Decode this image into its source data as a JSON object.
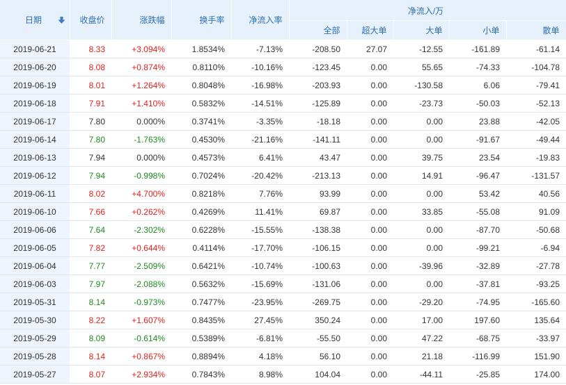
{
  "headers": {
    "date": "日期",
    "close": "收盘价",
    "change": "涨跌幅",
    "turnover": "换手率",
    "net_ratio": "净流入率",
    "net_group": "净流入/万",
    "all": "全部",
    "xl": "超大单",
    "l": "大单",
    "s": "小单",
    "r": "散单"
  },
  "colors": {
    "up": "#e0211b",
    "down": "#1e8a1e",
    "flat": "#333333",
    "header_text": "#2b6fb5",
    "header_bg": "#e7f1fc"
  },
  "sort_icon": "sort-desc-arrow-icon",
  "rows": [
    {
      "date": "2019-06-21",
      "close": "8.33",
      "change": "+3.094%",
      "turnover": "1.8534%",
      "net_ratio": "-7.13%",
      "all": "-208.50",
      "xl": "27.07",
      "l": "-12.55",
      "s": "-161.89",
      "r": "-61.14",
      "trend": "up"
    },
    {
      "date": "2019-06-20",
      "close": "8.08",
      "change": "+0.874%",
      "turnover": "0.8110%",
      "net_ratio": "-10.16%",
      "all": "-123.45",
      "xl": "0.00",
      "l": "55.65",
      "s": "-74.33",
      "r": "-104.78",
      "trend": "up"
    },
    {
      "date": "2019-06-19",
      "close": "8.01",
      "change": "+1.264%",
      "turnover": "0.8048%",
      "net_ratio": "-16.98%",
      "all": "-203.93",
      "xl": "0.00",
      "l": "-130.58",
      "s": "6.06",
      "r": "-79.41",
      "trend": "up"
    },
    {
      "date": "2019-06-18",
      "close": "7.91",
      "change": "+1.410%",
      "turnover": "0.5832%",
      "net_ratio": "-14.51%",
      "all": "-125.89",
      "xl": "0.00",
      "l": "-23.73",
      "s": "-50.03",
      "r": "-52.13",
      "trend": "up"
    },
    {
      "date": "2019-06-17",
      "close": "7.80",
      "change": "0.000%",
      "turnover": "0.3741%",
      "net_ratio": "-3.35%",
      "all": "-18.18",
      "xl": "0.00",
      "l": "0.00",
      "s": "23.88",
      "r": "-42.05",
      "trend": "flat"
    },
    {
      "date": "2019-06-14",
      "close": "7.80",
      "change": "-1.763%",
      "turnover": "0.4530%",
      "net_ratio": "-21.16%",
      "all": "-141.11",
      "xl": "0.00",
      "l": "0.00",
      "s": "-91.67",
      "r": "-49.44",
      "trend": "down"
    },
    {
      "date": "2019-06-13",
      "close": "7.94",
      "change": "0.000%",
      "turnover": "0.4573%",
      "net_ratio": "6.41%",
      "all": "43.47",
      "xl": "0.00",
      "l": "39.75",
      "s": "23.54",
      "r": "-19.83",
      "trend": "flat"
    },
    {
      "date": "2019-06-12",
      "close": "7.94",
      "change": "-0.998%",
      "turnover": "0.7024%",
      "net_ratio": "-20.42%",
      "all": "-213.13",
      "xl": "0.00",
      "l": "14.91",
      "s": "-96.47",
      "r": "-131.57",
      "trend": "down"
    },
    {
      "date": "2019-06-11",
      "close": "8.02",
      "change": "+4.700%",
      "turnover": "0.8218%",
      "net_ratio": "7.76%",
      "all": "93.99",
      "xl": "0.00",
      "l": "0.00",
      "s": "53.42",
      "r": "40.56",
      "trend": "up"
    },
    {
      "date": "2019-06-10",
      "close": "7.66",
      "change": "+0.262%",
      "turnover": "0.4269%",
      "net_ratio": "11.41%",
      "all": "69.87",
      "xl": "0.00",
      "l": "33.85",
      "s": "-55.08",
      "r": "91.09",
      "trend": "up"
    },
    {
      "date": "2019-06-06",
      "close": "7.64",
      "change": "-2.302%",
      "turnover": "0.6228%",
      "net_ratio": "-15.55%",
      "all": "-138.38",
      "xl": "0.00",
      "l": "0.00",
      "s": "-87.70",
      "r": "-50.68",
      "trend": "down"
    },
    {
      "date": "2019-06-05",
      "close": "7.82",
      "change": "+0.644%",
      "turnover": "0.4114%",
      "net_ratio": "-17.70%",
      "all": "-106.15",
      "xl": "0.00",
      "l": "0.00",
      "s": "-99.21",
      "r": "-6.94",
      "trend": "up"
    },
    {
      "date": "2019-06-04",
      "close": "7.77",
      "change": "-2.509%",
      "turnover": "0.6421%",
      "net_ratio": "-10.74%",
      "all": "-100.63",
      "xl": "0.00",
      "l": "-39.96",
      "s": "-32.89",
      "r": "-27.78",
      "trend": "down"
    },
    {
      "date": "2019-06-03",
      "close": "7.97",
      "change": "-2.088%",
      "turnover": "0.5632%",
      "net_ratio": "-15.69%",
      "all": "-131.06",
      "xl": "0.00",
      "l": "0.00",
      "s": "-37.81",
      "r": "-93.25",
      "trend": "down"
    },
    {
      "date": "2019-05-31",
      "close": "8.14",
      "change": "-0.973%",
      "turnover": "0.7477%",
      "net_ratio": "-23.95%",
      "all": "-269.75",
      "xl": "0.00",
      "l": "-29.20",
      "s": "-74.95",
      "r": "-165.60",
      "trend": "down"
    },
    {
      "date": "2019-05-30",
      "close": "8.22",
      "change": "+1.607%",
      "turnover": "0.8435%",
      "net_ratio": "27.45%",
      "all": "350.24",
      "xl": "0.00",
      "l": "17.00",
      "s": "197.60",
      "r": "135.64",
      "trend": "up"
    },
    {
      "date": "2019-05-29",
      "close": "8.09",
      "change": "-0.614%",
      "turnover": "0.5389%",
      "net_ratio": "-6.81%",
      "all": "-55.50",
      "xl": "0.00",
      "l": "47.22",
      "s": "-68.75",
      "r": "-33.97",
      "trend": "down"
    },
    {
      "date": "2019-05-28",
      "close": "8.14",
      "change": "+0.867%",
      "turnover": "0.8894%",
      "net_ratio": "4.18%",
      "all": "56.10",
      "xl": "0.00",
      "l": "21.18",
      "s": "-116.99",
      "r": "151.90",
      "trend": "up"
    },
    {
      "date": "2019-05-27",
      "close": "8.07",
      "change": "+2.934%",
      "turnover": "0.7843%",
      "net_ratio": "8.98%",
      "all": "104.04",
      "xl": "0.00",
      "l": "-44.11",
      "s": "-25.85",
      "r": "174.00",
      "trend": "up"
    }
  ]
}
